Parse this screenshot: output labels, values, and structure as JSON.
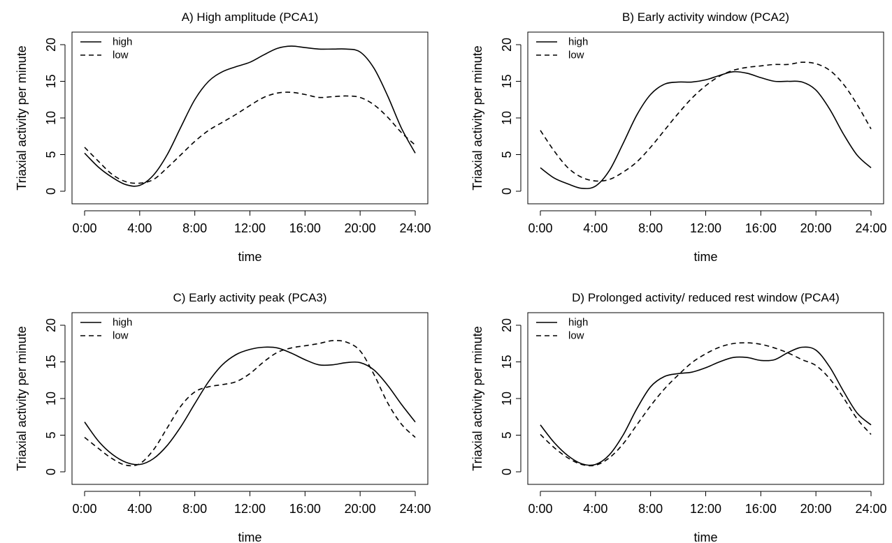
{
  "chart_data": [
    {
      "type": "line",
      "title": "A) High amplitude (PCA1)",
      "xlabel": "time",
      "ylabel": "Triaxial activity per minute",
      "xlim": [
        0,
        24
      ],
      "ylim": [
        0,
        20
      ],
      "x_ticks": [
        0,
        4,
        8,
        12,
        16,
        20,
        24
      ],
      "x_tick_labels": [
        "0:00",
        "4:00",
        "8:00",
        "12:00",
        "16:00",
        "20:00",
        "24:00"
      ],
      "y_ticks": [
        0,
        5,
        10,
        15,
        20
      ],
      "y_tick_labels": [
        "0",
        "5",
        "10",
        "15",
        "20"
      ],
      "legend_position": "top-left",
      "grid": false,
      "x": [
        0,
        1,
        2,
        3,
        4,
        5,
        6,
        7,
        8,
        9,
        10,
        11,
        12,
        13,
        14,
        15,
        16,
        17,
        18,
        19,
        20,
        21,
        22,
        23,
        24
      ],
      "series": [
        {
          "name": "high",
          "line_style": "solid",
          "values": [
            5.2,
            3.3,
            1.9,
            0.9,
            0.8,
            2.2,
            5.0,
            8.8,
            12.5,
            15.0,
            16.3,
            17.0,
            17.6,
            18.6,
            19.5,
            19.8,
            19.6,
            19.4,
            19.4,
            19.4,
            19.0,
            16.8,
            13.0,
            8.6,
            5.2
          ]
        },
        {
          "name": "low",
          "line_style": "dashed",
          "values": [
            6.0,
            4.1,
            2.3,
            1.3,
            1.1,
            1.6,
            3.2,
            5.0,
            6.8,
            8.3,
            9.4,
            10.5,
            11.7,
            12.8,
            13.4,
            13.5,
            13.2,
            12.8,
            12.9,
            13.0,
            12.8,
            11.8,
            10.1,
            8.0,
            6.3
          ]
        }
      ]
    },
    {
      "type": "line",
      "title": "B) Early activity window (PCA2)",
      "xlabel": "time",
      "ylabel": "Triaxial activity per minute",
      "xlim": [
        0,
        24
      ],
      "ylim": [
        0,
        20
      ],
      "x_ticks": [
        0,
        4,
        8,
        12,
        16,
        20,
        24
      ],
      "x_tick_labels": [
        "0:00",
        "4:00",
        "8:00",
        "12:00",
        "16:00",
        "20:00",
        "24:00"
      ],
      "y_ticks": [
        0,
        5,
        10,
        15,
        20
      ],
      "y_tick_labels": [
        "0",
        "5",
        "10",
        "15",
        "20"
      ],
      "legend_position": "top-left",
      "grid": false,
      "x": [
        0,
        1,
        2,
        3,
        4,
        5,
        6,
        7,
        8,
        9,
        10,
        11,
        12,
        13,
        14,
        15,
        16,
        17,
        18,
        19,
        20,
        21,
        22,
        23,
        24
      ],
      "series": [
        {
          "name": "high",
          "line_style": "solid",
          "values": [
            3.2,
            1.8,
            1.0,
            0.4,
            0.7,
            2.8,
            6.5,
            10.4,
            13.2,
            14.6,
            14.9,
            14.9,
            15.2,
            15.8,
            16.3,
            16.1,
            15.5,
            15.0,
            15.0,
            14.9,
            13.8,
            11.2,
            7.8,
            4.9,
            3.2
          ]
        },
        {
          "name": "low",
          "line_style": "dashed",
          "values": [
            8.3,
            5.5,
            3.2,
            1.9,
            1.4,
            1.6,
            2.6,
            4.0,
            6.0,
            8.3,
            10.6,
            12.7,
            14.4,
            15.7,
            16.5,
            16.9,
            17.1,
            17.3,
            17.3,
            17.6,
            17.4,
            16.5,
            14.6,
            11.8,
            8.5
          ]
        }
      ]
    },
    {
      "type": "line",
      "title": "C) Early activity peak (PCA3)",
      "xlabel": "time",
      "ylabel": "Triaxial activity per minute",
      "xlim": [
        0,
        24
      ],
      "ylim": [
        0,
        20
      ],
      "x_ticks": [
        0,
        4,
        8,
        12,
        16,
        20,
        24
      ],
      "x_tick_labels": [
        "0:00",
        "4:00",
        "8:00",
        "12:00",
        "16:00",
        "20:00",
        "24:00"
      ],
      "y_ticks": [
        0,
        5,
        10,
        15,
        20
      ],
      "y_tick_labels": [
        "0",
        "5",
        "10",
        "15",
        "20"
      ],
      "legend_position": "top-left",
      "grid": false,
      "x": [
        0,
        1,
        2,
        3,
        4,
        5,
        6,
        7,
        8,
        9,
        10,
        11,
        12,
        13,
        14,
        15,
        16,
        17,
        18,
        19,
        20,
        21,
        22,
        23,
        24
      ],
      "series": [
        {
          "name": "high",
          "line_style": "solid",
          "values": [
            6.8,
            4.2,
            2.4,
            1.3,
            1.0,
            1.8,
            3.6,
            6.2,
            9.3,
            12.3,
            14.6,
            16.0,
            16.7,
            17.0,
            16.9,
            16.2,
            15.3,
            14.6,
            14.6,
            14.9,
            14.9,
            13.9,
            11.8,
            9.2,
            6.8
          ]
        },
        {
          "name": "low",
          "line_style": "dashed",
          "values": [
            4.7,
            3.2,
            1.8,
            0.9,
            1.1,
            3.0,
            6.0,
            9.0,
            10.9,
            11.6,
            11.9,
            12.3,
            13.4,
            15.0,
            16.3,
            16.9,
            17.2,
            17.5,
            17.9,
            17.7,
            16.5,
            13.3,
            9.4,
            6.5,
            4.7
          ]
        }
      ]
    },
    {
      "type": "line",
      "title": "D) Prolonged activity/ reduced rest window (PCA4)",
      "xlabel": "time",
      "ylabel": "Triaxial activity per minute",
      "xlim": [
        0,
        24
      ],
      "ylim": [
        0,
        20
      ],
      "x_ticks": [
        0,
        4,
        8,
        12,
        16,
        20,
        24
      ],
      "x_tick_labels": [
        "0:00",
        "4:00",
        "8:00",
        "12:00",
        "16:00",
        "20:00",
        "24:00"
      ],
      "y_ticks": [
        0,
        5,
        10,
        15,
        20
      ],
      "y_tick_labels": [
        "0",
        "5",
        "10",
        "15",
        "20"
      ],
      "legend_position": "top-left",
      "grid": false,
      "x": [
        0,
        1,
        2,
        3,
        4,
        5,
        6,
        7,
        8,
        9,
        10,
        11,
        12,
        13,
        14,
        15,
        16,
        17,
        18,
        19,
        20,
        21,
        22,
        23,
        24
      ],
      "series": [
        {
          "name": "high",
          "line_style": "solid",
          "values": [
            6.4,
            4.0,
            2.2,
            1.1,
            1.0,
            2.3,
            5.0,
            8.6,
            11.6,
            13.0,
            13.4,
            13.6,
            14.2,
            15.0,
            15.6,
            15.6,
            15.2,
            15.3,
            16.3,
            17.0,
            16.6,
            14.3,
            11.0,
            8.0,
            6.4
          ]
        },
        {
          "name": "low",
          "line_style": "dashed",
          "values": [
            5.1,
            3.3,
            1.9,
            1.0,
            0.9,
            1.9,
            3.8,
            6.4,
            9.0,
            11.3,
            13.2,
            14.9,
            16.1,
            17.0,
            17.5,
            17.6,
            17.4,
            16.9,
            16.2,
            15.3,
            14.5,
            12.7,
            10.1,
            7.2,
            5.1
          ]
        }
      ]
    }
  ]
}
